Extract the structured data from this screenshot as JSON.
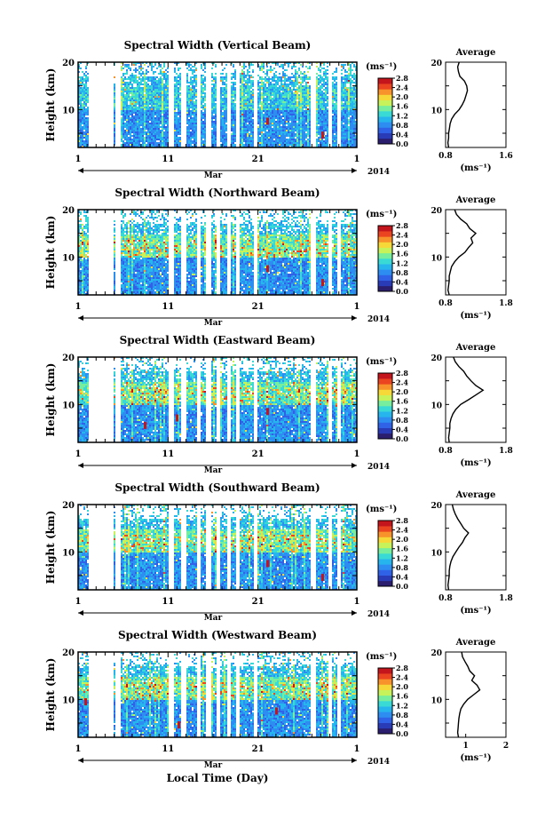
{
  "figure": {
    "xlabel": "Local Time (Day)",
    "month_label": "Mar",
    "year_label": "2014",
    "cbar_unit": "(ms⁻¹)",
    "cbar_ticks": [
      "0.0",
      "0.4",
      "0.8",
      "1.2",
      "1.6",
      "2.0",
      "2.4",
      "2.8"
    ],
    "colorscale": [
      "#2b1e6e",
      "#2a3bb8",
      "#2f62e6",
      "#2d8df0",
      "#27b5ee",
      "#39d9d6",
      "#77ee9d",
      "#c7f25a",
      "#f6d838",
      "#f8922a",
      "#ea4420",
      "#c4141c"
    ],
    "avg_title": "Average",
    "avg_xlabel": "(ms⁻¹)",
    "ylabel": "Height (km)"
  },
  "chart_data": [
    {
      "type": "heatmap",
      "title": "Spectral Width (Vertical Beam)",
      "xlabel": "Local Time (Day)",
      "ylabel": "Height (km)",
      "x_ticks": [
        "1",
        "11",
        "21",
        "1"
      ],
      "y_ticks": [
        "10",
        "20"
      ],
      "ylim": [
        2,
        20
      ],
      "colorbar_range": [
        0.0,
        2.8
      ],
      "average_profile": {
        "title": "Average",
        "xlim": [
          0.8,
          1.6
        ],
        "x_ticks": [
          "0.8",
          "1.6"
        ],
        "height": [
          2,
          3,
          4,
          5,
          6,
          7,
          8,
          9,
          10,
          11,
          12,
          13,
          14,
          15,
          16,
          17,
          18,
          19,
          20
        ],
        "value": [
          0.84,
          0.83,
          0.84,
          0.84,
          0.85,
          0.86,
          0.88,
          0.92,
          0.98,
          1.02,
          1.05,
          1.07,
          1.09,
          1.08,
          1.05,
          0.99,
          0.97,
          0.96,
          0.98
        ]
      }
    },
    {
      "type": "heatmap",
      "title": "Spectral Width (Northward Beam)",
      "xlabel": "Local Time (Day)",
      "ylabel": "Height (km)",
      "x_ticks": [
        "1",
        "11",
        "21",
        "1"
      ],
      "y_ticks": [
        "10",
        "20"
      ],
      "ylim": [
        2,
        20
      ],
      "colorbar_range": [
        0.0,
        2.8
      ],
      "average_profile": {
        "title": "Average",
        "xlim": [
          0.8,
          1.8
        ],
        "x_ticks": [
          "0.8",
          "1.8"
        ],
        "height": [
          2,
          3,
          4,
          5,
          6,
          7,
          8,
          9,
          10,
          11,
          12,
          13,
          14,
          15,
          16,
          17,
          18,
          19,
          20
        ],
        "value": [
          0.86,
          0.84,
          0.85,
          0.86,
          0.86,
          0.88,
          0.9,
          0.95,
          1.02,
          1.12,
          1.18,
          1.25,
          1.22,
          1.3,
          1.2,
          1.15,
          1.05,
          0.98,
          0.95
        ]
      }
    },
    {
      "type": "heatmap",
      "title": "Spectral Width (Eastward Beam)",
      "xlabel": "Local Time (Day)",
      "ylabel": "Height (km)",
      "x_ticks": [
        "1",
        "11",
        "21",
        "1"
      ],
      "y_ticks": [
        "10",
        "20"
      ],
      "ylim": [
        2,
        20
      ],
      "colorbar_range": [
        0.0,
        2.8
      ],
      "average_profile": {
        "title": "Average",
        "xlim": [
          0.8,
          1.8
        ],
        "x_ticks": [
          "0.8",
          "1.8"
        ],
        "height": [
          2,
          3,
          4,
          5,
          6,
          7,
          8,
          9,
          10,
          11,
          12,
          13,
          14,
          15,
          16,
          17,
          18,
          19,
          20
        ],
        "value": [
          0.86,
          0.85,
          0.86,
          0.87,
          0.87,
          0.89,
          0.92,
          0.97,
          1.05,
          1.18,
          1.3,
          1.42,
          1.3,
          1.22,
          1.15,
          1.1,
          1.02,
          0.96,
          0.93
        ]
      }
    },
    {
      "type": "heatmap",
      "title": "Spectral Width (Southward Beam)",
      "xlabel": "Local Time (Day)",
      "ylabel": "Height (km)",
      "x_ticks": [
        "1",
        "11",
        "21",
        "1"
      ],
      "y_ticks": [
        "10",
        "20"
      ],
      "ylim": [
        2,
        20
      ],
      "colorbar_range": [
        0.0,
        2.8
      ],
      "average_profile": {
        "title": "Average",
        "xlim": [
          0.8,
          1.8
        ],
        "x_ticks": [
          "0.8",
          "1.8"
        ],
        "height": [
          2,
          3,
          4,
          5,
          6,
          7,
          8,
          9,
          10,
          11,
          12,
          13,
          14,
          15,
          16,
          17,
          18,
          19,
          20
        ],
        "value": [
          0.85,
          0.84,
          0.85,
          0.86,
          0.86,
          0.87,
          0.89,
          0.92,
          0.97,
          1.02,
          1.08,
          1.12,
          1.18,
          1.1,
          1.05,
          1.0,
          0.96,
          0.93,
          0.91
        ]
      }
    },
    {
      "type": "heatmap",
      "title": "Spectral Width (Westward Beam)",
      "xlabel": "Local Time (Day)",
      "ylabel": "Height (km)",
      "x_ticks": [
        "1",
        "11",
        "21",
        "1"
      ],
      "y_ticks": [
        "10",
        "20"
      ],
      "ylim": [
        2,
        20
      ],
      "colorbar_range": [
        0.0,
        2.8
      ],
      "average_profile": {
        "title": "Average",
        "xlim": [
          0.5,
          2.0
        ],
        "x_ticks": [
          "1",
          "2"
        ],
        "height": [
          2,
          3,
          4,
          5,
          6,
          7,
          8,
          9,
          10,
          11,
          12,
          13,
          14,
          15,
          16,
          17,
          18,
          19,
          20
        ],
        "value": [
          0.82,
          0.8,
          0.81,
          0.82,
          0.83,
          0.85,
          0.88,
          0.95,
          1.05,
          1.2,
          1.35,
          1.28,
          1.15,
          1.22,
          1.1,
          1.05,
          0.98,
          0.92,
          0.9
        ]
      }
    }
  ]
}
